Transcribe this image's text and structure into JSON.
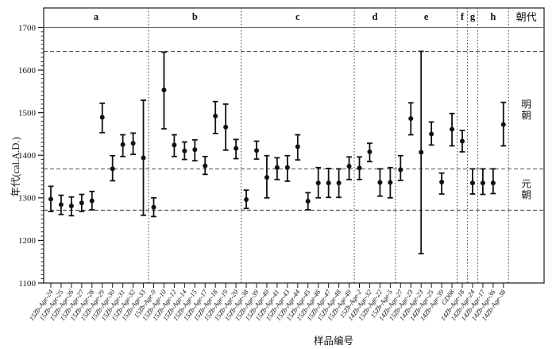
{
  "chart_data": {
    "type": "scatter",
    "title": "",
    "ylabel": "年代(cal.A.D.)",
    "xlabel": "样品编号",
    "ylim": [
      1100,
      1700
    ],
    "y_major_ticks": [
      1100,
      1200,
      1300,
      1400,
      1500,
      1600,
      1700
    ],
    "y_minor_step": 10,
    "reference_years": [
      1644,
      1368,
      1271
    ],
    "header": {
      "dynasty_column_label": "朝代"
    },
    "dynasties": [
      {
        "label": "明朝",
        "from": 1368,
        "to": 1644
      },
      {
        "label": "元朝",
        "from": 1271,
        "to": 1368
      }
    ],
    "colors": {
      "data": "#111111",
      "frame": "#1a1a1a",
      "gridline_1700": "#666666",
      "reference_line": "#3a3a3a",
      "divider": "#555555"
    },
    "groups": [
      {
        "label": "a",
        "points": [
          {
            "sample": "15Zb-Age-24",
            "age": 1297,
            "lo": 1268,
            "hi": 1327
          },
          {
            "sample": "15Zb-Age-25",
            "age": 1284,
            "lo": 1261,
            "hi": 1306
          },
          {
            "sample": "15Zb-Age-26",
            "age": 1281,
            "lo": 1258,
            "hi": 1302
          },
          {
            "sample": "15Zb-Age-27",
            "age": 1288,
            "lo": 1268,
            "hi": 1308
          },
          {
            "sample": "15Zb-Age-28",
            "age": 1293,
            "lo": 1272,
            "hi": 1315
          },
          {
            "sample": "15Zb-Age-29",
            "age": 1489,
            "lo": 1453,
            "hi": 1522
          },
          {
            "sample": "15Zb-Age-30",
            "age": 1368,
            "lo": 1340,
            "hi": 1399
          },
          {
            "sample": "15Zb-Age-31",
            "age": 1425,
            "lo": 1397,
            "hi": 1448
          },
          {
            "sample": "15Zb-Age-32",
            "age": 1428,
            "lo": 1402,
            "hi": 1452
          },
          {
            "sample": "15Zb-Age-33",
            "age": 1394,
            "lo": 1259,
            "hi": 1529
          }
        ]
      },
      {
        "label": "b",
        "points": [
          {
            "sample": "15Zb-Age-9",
            "age": 1278,
            "lo": 1256,
            "hi": 1300
          },
          {
            "sample": "15Zb-Age-10",
            "age": 1553,
            "lo": 1462,
            "hi": 1642
          },
          {
            "sample": "15Zb-Age-12",
            "age": 1424,
            "lo": 1397,
            "hi": 1448
          },
          {
            "sample": "15Zb-Age-14",
            "age": 1410,
            "lo": 1390,
            "hi": 1431
          },
          {
            "sample": "15Zb-Age-15",
            "age": 1413,
            "lo": 1387,
            "hi": 1436
          },
          {
            "sample": "15Zb-Age-17",
            "age": 1375,
            "lo": 1355,
            "hi": 1397
          },
          {
            "sample": "15Zb-Age-18",
            "age": 1492,
            "lo": 1451,
            "hi": 1526
          },
          {
            "sample": "15Zb-Age-19",
            "age": 1466,
            "lo": 1412,
            "hi": 1520
          },
          {
            "sample": "15Zb-Age-20",
            "age": 1416,
            "lo": 1392,
            "hi": 1437
          }
        ]
      },
      {
        "label": "c",
        "points": [
          {
            "sample": "15Zb-Age-38",
            "age": 1296,
            "lo": 1275,
            "hi": 1318
          },
          {
            "sample": "15Zb-Age-39",
            "age": 1411,
            "lo": 1391,
            "hi": 1433
          },
          {
            "sample": "15Zb-Age-40",
            "age": 1348,
            "lo": 1300,
            "hi": 1399
          },
          {
            "sample": "15Zb-Age-41",
            "age": 1371,
            "lo": 1343,
            "hi": 1394
          },
          {
            "sample": "15Zb-Age-43",
            "age": 1371,
            "lo": 1339,
            "hi": 1399
          },
          {
            "sample": "15Zb-Age-44",
            "age": 1420,
            "lo": 1389,
            "hi": 1448
          },
          {
            "sample": "15Zb-Age-45",
            "age": 1292,
            "lo": 1272,
            "hi": 1312
          },
          {
            "sample": "15Zb-Age-46",
            "age": 1335,
            "lo": 1300,
            "hi": 1371
          },
          {
            "sample": "15Zb-Age-47",
            "age": 1335,
            "lo": 1301,
            "hi": 1369
          },
          {
            "sample": "15Zb-Age-48",
            "age": 1335,
            "lo": 1301,
            "hi": 1368
          },
          {
            "sample": "15Zb-Age-49",
            "age": 1374,
            "lo": 1343,
            "hi": 1396
          }
        ]
      },
      {
        "label": "d",
        "points": [
          {
            "sample": "15Zb-Age-2",
            "age": 1370,
            "lo": 1343,
            "hi": 1396
          },
          {
            "sample": "14Zb-Age-32",
            "age": 1408,
            "lo": 1385,
            "hi": 1428
          },
          {
            "sample": "15Zb-Age-22",
            "age": 1336,
            "lo": 1304,
            "hi": 1368
          },
          {
            "sample": "15Zb-Age-5",
            "age": 1336,
            "lo": 1300,
            "hi": 1371
          }
        ]
      },
      {
        "label": "e",
        "points": [
          {
            "sample": "14Zb-Age-27",
            "age": 1366,
            "lo": 1341,
            "hi": 1399
          },
          {
            "sample": "15Zb-Age-23",
            "age": 1486,
            "lo": 1448,
            "hi": 1523
          },
          {
            "sample": "14Zb-Age-23",
            "age": 1407,
            "lo": 1169,
            "hi": 1644
          },
          {
            "sample": "14Zb-Age-25",
            "age": 1450,
            "lo": 1424,
            "hi": 1478
          },
          {
            "sample": "14Zb-Age-39",
            "age": 1337,
            "lo": 1309,
            "hi": 1358
          },
          {
            "sample": "GD08",
            "age": 1461,
            "lo": 1422,
            "hi": 1498
          }
        ]
      },
      {
        "label": "f",
        "points": [
          {
            "sample": "14Zb-Age-18",
            "age": 1433,
            "lo": 1408,
            "hi": 1458
          }
        ]
      },
      {
        "label": "g",
        "points": [
          {
            "sample": "14Zb-Age-24",
            "age": 1335,
            "lo": 1309,
            "hi": 1368
          }
        ]
      },
      {
        "label": "h",
        "points": [
          {
            "sample": "14Zb-Age-17",
            "age": 1335,
            "lo": 1308,
            "hi": 1368
          },
          {
            "sample": "14Zb-Age-36",
            "age": 1335,
            "lo": 1310,
            "hi": 1368
          },
          {
            "sample": "14Zb-Age-38",
            "age": 1472,
            "lo": 1422,
            "hi": 1524
          }
        ]
      }
    ]
  }
}
